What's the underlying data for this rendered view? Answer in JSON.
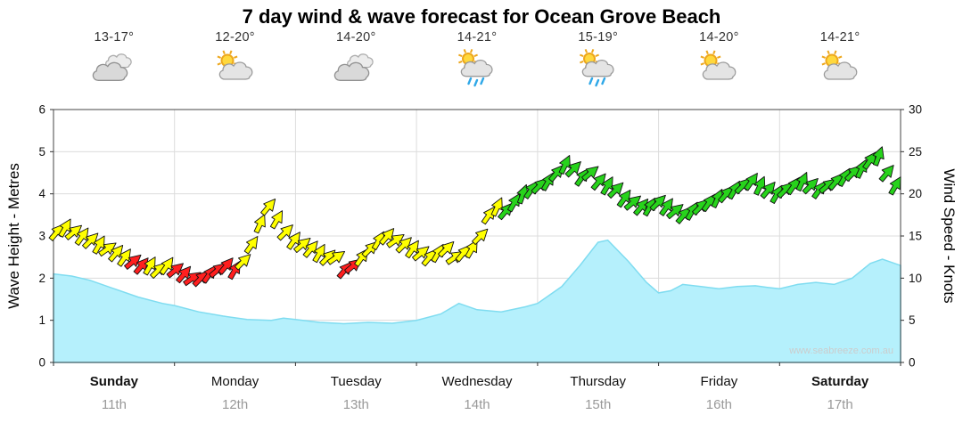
{
  "title": "7 day wind & wave forecast for Ocean Grove Beach",
  "watermark": "www.seabreeze.com.au",
  "axes": {
    "left_label": "Wave Height - Metres",
    "right_label": "Wind Speed - Knots"
  },
  "days": [
    {
      "name": "Sunday",
      "date": "11th",
      "temp": "13-17°",
      "icon": "cloudy",
      "bold": true
    },
    {
      "name": "Monday",
      "date": "12th",
      "temp": "12-20°",
      "icon": "partly-sunny",
      "bold": false
    },
    {
      "name": "Tuesday",
      "date": "13th",
      "temp": "14-20°",
      "icon": "cloudy",
      "bold": false
    },
    {
      "name": "Wednesday",
      "date": "14th",
      "temp": "14-21°",
      "icon": "sun-showers",
      "bold": false
    },
    {
      "name": "Thursday",
      "date": "15th",
      "temp": "15-19°",
      "icon": "sun-showers",
      "bold": false
    },
    {
      "name": "Friday",
      "date": "16th",
      "temp": "14-20°",
      "icon": "partly-sunny",
      "bold": false
    },
    {
      "name": "Saturday",
      "date": "17th",
      "temp": "14-21°",
      "icon": "partly-sunny",
      "bold": true
    }
  ],
  "chart_data": {
    "type": "line",
    "title": "7 day wind & wave forecast for Ocean Grove Beach",
    "x_range_days": [
      0,
      7
    ],
    "x_tick_labels": [
      "Sunday 11th",
      "Monday 12th",
      "Tuesday 13th",
      "Wednesday 14th",
      "Thursday 15th",
      "Friday 16th",
      "Saturday 17th"
    ],
    "left_axis": {
      "label": "Wave Height - Metres",
      "range": [
        0,
        6
      ],
      "ticks": [
        0,
        1,
        2,
        3,
        4,
        5,
        6
      ]
    },
    "right_axis": {
      "label": "Wind Speed - Knots",
      "range": [
        0,
        30
      ],
      "ticks": [
        0,
        5,
        10,
        15,
        20,
        25,
        30
      ]
    },
    "grid": true,
    "colors": {
      "wave_fill": "#b5f0fc",
      "wave_line": "#7fdcf0",
      "yellow": "#ffff00",
      "red": "#ff1f1f",
      "green": "#27d31b"
    },
    "wave_height_m": {
      "units": "metres",
      "points": [
        [
          0,
          2.1
        ],
        [
          0.15,
          2.05
        ],
        [
          0.3,
          1.95
        ],
        [
          0.5,
          1.75
        ],
        [
          0.7,
          1.55
        ],
        [
          0.9,
          1.4
        ],
        [
          1.0,
          1.35
        ],
        [
          1.2,
          1.2
        ],
        [
          1.4,
          1.1
        ],
        [
          1.6,
          1.02
        ],
        [
          1.8,
          1.0
        ],
        [
          1.9,
          1.05
        ],
        [
          2.0,
          1.02
        ],
        [
          2.2,
          0.95
        ],
        [
          2.4,
          0.92
        ],
        [
          2.6,
          0.95
        ],
        [
          2.8,
          0.93
        ],
        [
          3.0,
          1.0
        ],
        [
          3.2,
          1.15
        ],
        [
          3.35,
          1.4
        ],
        [
          3.5,
          1.25
        ],
        [
          3.7,
          1.2
        ],
        [
          3.9,
          1.32
        ],
        [
          4.0,
          1.4
        ],
        [
          4.2,
          1.8
        ],
        [
          4.35,
          2.3
        ],
        [
          4.5,
          2.85
        ],
        [
          4.58,
          2.9
        ],
        [
          4.75,
          2.4
        ],
        [
          4.9,
          1.9
        ],
        [
          5.0,
          1.65
        ],
        [
          5.1,
          1.7
        ],
        [
          5.2,
          1.85
        ],
        [
          5.35,
          1.8
        ],
        [
          5.5,
          1.75
        ],
        [
          5.65,
          1.8
        ],
        [
          5.8,
          1.82
        ],
        [
          5.9,
          1.78
        ],
        [
          6.0,
          1.75
        ],
        [
          6.15,
          1.85
        ],
        [
          6.3,
          1.9
        ],
        [
          6.45,
          1.85
        ],
        [
          6.6,
          2.0
        ],
        [
          6.75,
          2.35
        ],
        [
          6.85,
          2.45
        ],
        [
          7.0,
          2.3
        ]
      ]
    },
    "wind_knots": {
      "units": "knots",
      "point_format": [
        "t_days",
        "knots",
        "color",
        "direction_deg"
      ],
      "points": [
        [
          0.03,
          15.5,
          "y",
          40
        ],
        [
          0.1,
          16,
          "y",
          30
        ],
        [
          0.17,
          15.5,
          "y",
          50
        ],
        [
          0.24,
          15,
          "y",
          35
        ],
        [
          0.31,
          14.5,
          "y",
          45
        ],
        [
          0.38,
          14,
          "y",
          30
        ],
        [
          0.45,
          13.5,
          "y",
          55
        ],
        [
          0.52,
          13,
          "y",
          40
        ],
        [
          0.59,
          12.5,
          "y",
          35
        ],
        [
          0.66,
          12,
          "r",
          50
        ],
        [
          0.73,
          11.5,
          "r",
          40
        ],
        [
          0.8,
          11.5,
          "y",
          30
        ],
        [
          0.87,
          11,
          "y",
          45
        ],
        [
          0.94,
          11.5,
          "y",
          35
        ],
        [
          1.01,
          11,
          "r",
          50
        ],
        [
          1.08,
          10.5,
          "r",
          40
        ],
        [
          1.15,
          10,
          "r",
          55
        ],
        [
          1.22,
          10,
          "r",
          45
        ],
        [
          1.29,
          10.5,
          "r",
          35
        ],
        [
          1.36,
          11,
          "r",
          50
        ],
        [
          1.43,
          11.5,
          "r",
          40
        ],
        [
          1.5,
          11,
          "r",
          30
        ],
        [
          1.57,
          12,
          "y",
          45
        ],
        [
          1.64,
          14,
          "y",
          35
        ],
        [
          1.71,
          16.5,
          "y",
          25
        ],
        [
          1.78,
          18.5,
          "y",
          40
        ],
        [
          1.85,
          17,
          "y",
          30
        ],
        [
          1.92,
          15.5,
          "y",
          45
        ],
        [
          1.99,
          14.5,
          "y",
          35
        ],
        [
          2.06,
          14,
          "y",
          50
        ],
        [
          2.13,
          13.5,
          "y",
          40
        ],
        [
          2.2,
          13,
          "y",
          30
        ],
        [
          2.27,
          12.5,
          "y",
          45
        ],
        [
          2.34,
          12.5,
          "y",
          55
        ],
        [
          2.41,
          11,
          "r",
          40
        ],
        [
          2.48,
          11.5,
          "r",
          50
        ],
        [
          2.55,
          12.5,
          "y",
          35
        ],
        [
          2.62,
          13.5,
          "y",
          45
        ],
        [
          2.69,
          14.5,
          "y",
          30
        ],
        [
          2.76,
          15,
          "y",
          40
        ],
        [
          2.83,
          14.5,
          "y",
          55
        ],
        [
          2.9,
          14,
          "y",
          45
        ],
        [
          2.97,
          13.5,
          "y",
          35
        ],
        [
          3.04,
          13,
          "y",
          50
        ],
        [
          3.11,
          12.5,
          "y",
          40
        ],
        [
          3.18,
          13,
          "y",
          30
        ],
        [
          3.25,
          13.5,
          "y",
          45
        ],
        [
          3.32,
          12.5,
          "y",
          55
        ],
        [
          3.39,
          13,
          "y",
          40
        ],
        [
          3.46,
          13.5,
          "y",
          30
        ],
        [
          3.53,
          15,
          "y",
          45
        ],
        [
          3.6,
          17.5,
          "y",
          35
        ],
        [
          3.67,
          18.5,
          "y",
          25
        ],
        [
          3.74,
          18,
          "g",
          40
        ],
        [
          3.81,
          19,
          "g",
          30
        ],
        [
          3.88,
          20,
          "g",
          20
        ],
        [
          3.95,
          20.5,
          "g",
          35
        ],
        [
          4.02,
          21,
          "g",
          45
        ],
        [
          4.09,
          21.5,
          "g",
          30
        ],
        [
          4.16,
          22.5,
          "g",
          40
        ],
        [
          4.23,
          23.5,
          "g",
          25
        ],
        [
          4.3,
          23,
          "g",
          45
        ],
        [
          4.37,
          22,
          "g",
          35
        ],
        [
          4.44,
          22.5,
          "g",
          50
        ],
        [
          4.51,
          21.5,
          "g",
          40
        ],
        [
          4.58,
          21,
          "g",
          30
        ],
        [
          4.65,
          20.5,
          "g",
          45
        ],
        [
          4.72,
          19.5,
          "g",
          35
        ],
        [
          4.79,
          19,
          "g",
          50
        ],
        [
          4.86,
          18.5,
          "g",
          40
        ],
        [
          4.93,
          18.5,
          "g",
          30
        ],
        [
          5.0,
          19,
          "g",
          45
        ],
        [
          5.07,
          18.5,
          "g",
          35
        ],
        [
          5.14,
          18,
          "g",
          50
        ],
        [
          5.21,
          17.5,
          "g",
          40
        ],
        [
          5.28,
          18,
          "g",
          30
        ],
        [
          5.35,
          18.5,
          "g",
          45
        ],
        [
          5.42,
          19,
          "g",
          35
        ],
        [
          5.49,
          19.5,
          "g",
          25
        ],
        [
          5.56,
          20,
          "g",
          40
        ],
        [
          5.63,
          20.5,
          "g",
          30
        ],
        [
          5.7,
          21,
          "g",
          45
        ],
        [
          5.77,
          21.5,
          "g",
          35
        ],
        [
          5.84,
          21,
          "g",
          25
        ],
        [
          5.91,
          20.5,
          "g",
          40
        ],
        [
          5.98,
          20,
          "g",
          30
        ],
        [
          6.05,
          20.5,
          "g",
          45
        ],
        [
          6.12,
          21,
          "g",
          35
        ],
        [
          6.19,
          21.5,
          "g",
          25
        ],
        [
          6.26,
          21,
          "g",
          45
        ],
        [
          6.33,
          20.5,
          "g",
          35
        ],
        [
          6.4,
          21,
          "g",
          50
        ],
        [
          6.47,
          21.5,
          "g",
          40
        ],
        [
          6.54,
          22,
          "g",
          30
        ],
        [
          6.61,
          22.5,
          "g",
          45
        ],
        [
          6.68,
          23,
          "g",
          25
        ],
        [
          6.75,
          24,
          "g",
          35
        ],
        [
          6.82,
          24.5,
          "g",
          20
        ],
        [
          6.89,
          22.5,
          "g",
          40
        ],
        [
          6.96,
          21,
          "g",
          30
        ]
      ]
    }
  }
}
